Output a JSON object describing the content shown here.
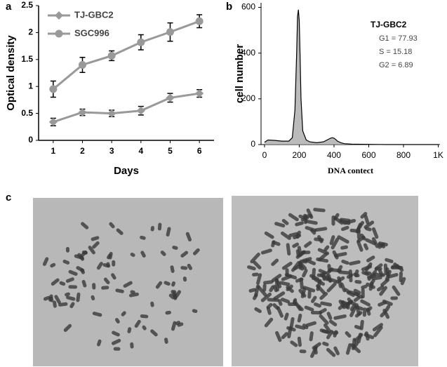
{
  "chart_data": [
    {
      "type": "line",
      "panel": "a",
      "xlabel": "Days",
      "ylabel": "Optical density",
      "x": [
        1,
        2,
        3,
        4,
        5,
        6
      ],
      "xlim": [
        0.5,
        6.5
      ],
      "xticks": [
        1,
        2,
        3,
        4,
        5,
        6
      ],
      "ylim": [
        0,
        2.5
      ],
      "yticks": [
        0,
        0.5,
        1,
        1.5,
        2,
        2.5
      ],
      "legend": "upper left",
      "series": [
        {
          "name": "TJ-GBC2",
          "color": "#999999",
          "marker": "diamond",
          "values": [
            0.34,
            0.52,
            0.5,
            0.55,
            0.79,
            0.87
          ],
          "errors": [
            0.07,
            0.06,
            0.06,
            0.08,
            0.08,
            0.07
          ]
        },
        {
          "name": "SGC996",
          "color": "#999999",
          "marker": "circle",
          "values": [
            0.95,
            1.4,
            1.57,
            1.82,
            2.01,
            2.21
          ],
          "errors": [
            0.15,
            0.14,
            0.09,
            0.14,
            0.17,
            0.12
          ]
        }
      ]
    },
    {
      "type": "area",
      "panel": "b",
      "xlabel": "DNA contect",
      "ylabel": "cell number",
      "xlim": [
        -20,
        1010
      ],
      "xticks": [
        0,
        200,
        400,
        600,
        800,
        {
          "value": 1000,
          "label": "1K"
        }
      ],
      "ylim": [
        0,
        620
      ],
      "yticks": [
        0,
        200,
        400,
        600
      ],
      "annotations": [
        "TJ-GBC2",
        "G1 = 77.93",
        "S = 15.18",
        "G2 = 6.89"
      ],
      "series": [
        {
          "color": "#aaaaaa",
          "x": [
            0,
            20,
            60,
            100,
            140,
            160,
            175,
            185,
            190,
            195,
            200,
            205,
            210,
            220,
            240,
            260,
            300,
            340,
            360,
            380,
            390,
            400,
            410,
            420,
            440,
            460,
            500,
            600,
            700,
            800,
            1000
          ],
          "values": [
            10,
            20,
            18,
            15,
            15,
            30,
            150,
            400,
            560,
            590,
            540,
            380,
            200,
            60,
            20,
            12,
            8,
            12,
            20,
            28,
            30,
            28,
            22,
            15,
            8,
            4,
            2,
            1,
            0,
            0,
            0
          ]
        }
      ]
    }
  ],
  "panel_c": {
    "label": "c"
  }
}
